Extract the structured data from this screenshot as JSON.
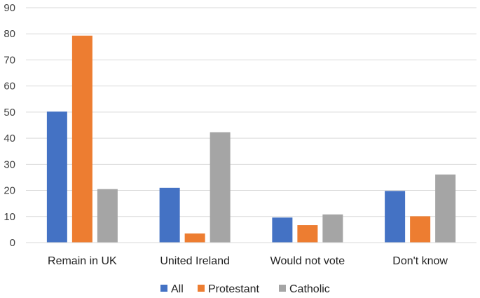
{
  "chart_data": {
    "type": "bar",
    "title": "",
    "xlabel": "",
    "ylabel": "",
    "categories": [
      "Remain in UK",
      "United Ireland",
      "Would not vote",
      "Don't know"
    ],
    "series": [
      {
        "name": "All",
        "color": "#4472C4",
        "values": [
          50.2,
          21.0,
          9.6,
          19.8
        ]
      },
      {
        "name": "Protestant",
        "color": "#ED7D31",
        "values": [
          79.3,
          3.5,
          6.7,
          10.1
        ]
      },
      {
        "name": "Catholic",
        "color": "#A5A5A5",
        "values": [
          20.5,
          42.3,
          10.8,
          26.1
        ]
      }
    ],
    "ylim": [
      0,
      90
    ],
    "yticks": [
      0,
      10,
      20,
      30,
      40,
      50,
      60,
      70,
      80,
      90
    ],
    "grid": true,
    "legend_position": "bottom-center"
  }
}
